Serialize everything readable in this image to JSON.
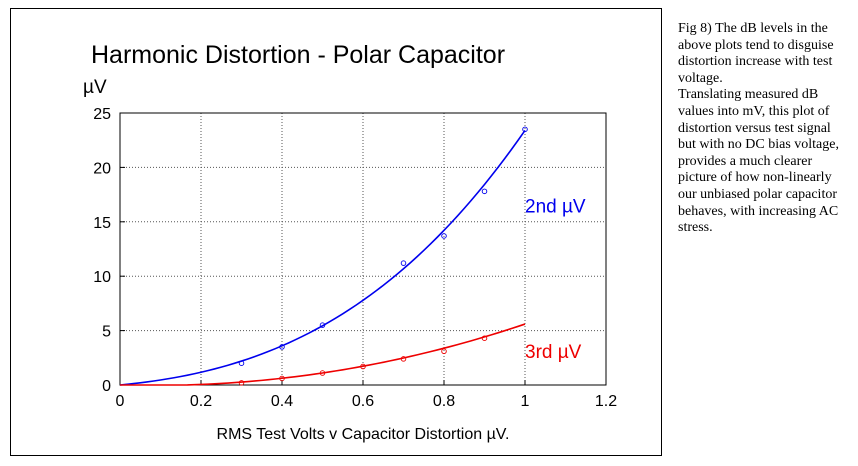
{
  "chart_data": {
    "type": "scatter",
    "title": "Harmonic Distortion - Polar Capacitor",
    "ylabel": "µV",
    "xlabel": "RMS Test Volts v Capacitor Distortion µV.",
    "xlim": [
      0,
      1.2
    ],
    "ylim": [
      0,
      25
    ],
    "x_ticks": [
      "0",
      "0.2",
      "0.4",
      "0.6",
      "0.8",
      "1",
      "1.2"
    ],
    "y_ticks": [
      "0",
      "5",
      "10",
      "15",
      "20",
      "25"
    ],
    "grid": true,
    "series": [
      {
        "name": "2nd µV",
        "color": "#0000ee",
        "x": [
          0.3,
          0.4,
          0.5,
          0.7,
          0.8,
          0.9,
          1.0
        ],
        "y": [
          2.0,
          3.5,
          5.5,
          11.2,
          13.7,
          17.8,
          23.5
        ],
        "fit_end": 23.4
      },
      {
        "name": "3rd µV",
        "color": "#ee0000",
        "x": [
          0.3,
          0.4,
          0.5,
          0.6,
          0.7,
          0.8,
          0.9
        ],
        "y": [
          0.2,
          0.6,
          1.1,
          1.7,
          2.4,
          3.1,
          4.3
        ],
        "fit_end": 5.6
      }
    ]
  },
  "caption": {
    "line1": "Fig 8) The dB levels in the above plots tend to disguise distortion increase with test voltage.",
    "line2": "Translating measured dB values into mV, this plot of distortion versus test signal but with no DC bias voltage, provides a much clearer picture of how non-linearly our unbiased polar capacitor behaves, with increasing AC stress."
  }
}
